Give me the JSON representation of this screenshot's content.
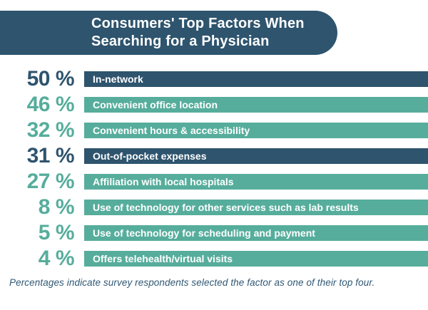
{
  "colors": {
    "navy": "#2E546E",
    "teal": "#56AD9C",
    "title_text": "#FFFFFF",
    "bar_label_text": "#FFFFFF",
    "note_text": "#2F5874",
    "background": "#FFFFFF"
  },
  "header": {
    "title_line1": "Consumers' Top Factors When",
    "title_line2": "Searching for a Physician"
  },
  "chart_data": {
    "type": "bar",
    "title": "Consumers' Top Factors When Searching for a Physician",
    "value_unit": "%",
    "orientation": "horizontal",
    "bar_style": "full-width colored strips with percentage labels at left",
    "categories": [
      "In-network",
      "Convenient office location",
      "Convenient hours & accessibility",
      "Out-of-pocket expenses",
      "Affiliation with local hospitals",
      "Use of technology for other services such as lab results",
      "Use of technology for scheduling and payment",
      "Offers telehealth/virtual visits"
    ],
    "values": [
      50,
      46,
      32,
      31,
      27,
      8,
      5,
      4
    ],
    "rows": [
      {
        "pct_label": "50 %",
        "value": 50,
        "label": "In-network",
        "color": "navy"
      },
      {
        "pct_label": "46 %",
        "value": 46,
        "label": "Convenient office location",
        "color": "teal"
      },
      {
        "pct_label": "32 %",
        "value": 32,
        "label": "Convenient hours & accessibility",
        "color": "teal"
      },
      {
        "pct_label": "31 %",
        "value": 31,
        "label": "Out-of-pocket expenses",
        "color": "navy"
      },
      {
        "pct_label": "27 %",
        "value": 27,
        "label": "Affiliation with local hospitals",
        "color": "teal"
      },
      {
        "pct_label": "8 %",
        "value": 8,
        "label": "Use of technology for other services such as lab results",
        "color": "teal"
      },
      {
        "pct_label": "5 %",
        "value": 5,
        "label": "Use of technology for scheduling and payment",
        "color": "teal"
      },
      {
        "pct_label": "4 %",
        "value": 4,
        "label": "Offers telehealth/virtual visits",
        "color": "teal"
      }
    ],
    "note": "Percentages indicate survey respondents selected the factor as one of their top four."
  }
}
